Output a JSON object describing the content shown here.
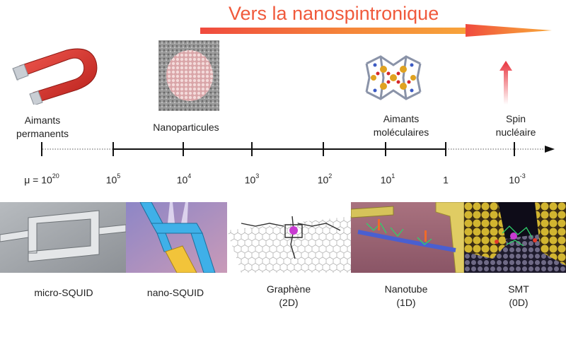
{
  "header": {
    "title": "Vers la nanospintronique"
  },
  "timeline": {
    "labels": {
      "aimants_permanents": [
        "Aimants",
        "permanents"
      ],
      "nanoparticules": "Nanoparticules",
      "aimants_moleculaires": [
        "Aimants",
        "moléculaires"
      ],
      "spin_nucleaire": [
        "Spin",
        "nucléaire"
      ]
    },
    "ticks": [
      {
        "base": "μ = 10",
        "exp": "20"
      },
      {
        "base": "10",
        "exp": "5"
      },
      {
        "base": "10",
        "exp": "4"
      },
      {
        "base": "10",
        "exp": "3"
      },
      {
        "base": "10",
        "exp": "2"
      },
      {
        "base": "10",
        "exp": "1"
      },
      {
        "base": "1",
        "exp": ""
      },
      {
        "base": "10",
        "exp": "-3"
      }
    ]
  },
  "devices": [
    {
      "line1": "micro-SQUID",
      "line2": ""
    },
    {
      "line1": "nano-SQUID",
      "line2": ""
    },
    {
      "line1": "Graphène",
      "line2": "(2D)"
    },
    {
      "line1": "Nanotube",
      "line2": "(1D)"
    },
    {
      "line1": "SMT",
      "line2": "(0D)"
    }
  ],
  "colors": {
    "title": "#f05a3c",
    "arrow_start": "#f04a3e",
    "arrow_end": "#f7a43a",
    "magnet_red": "#d9342b",
    "spin_arrow": "#e8323c"
  }
}
